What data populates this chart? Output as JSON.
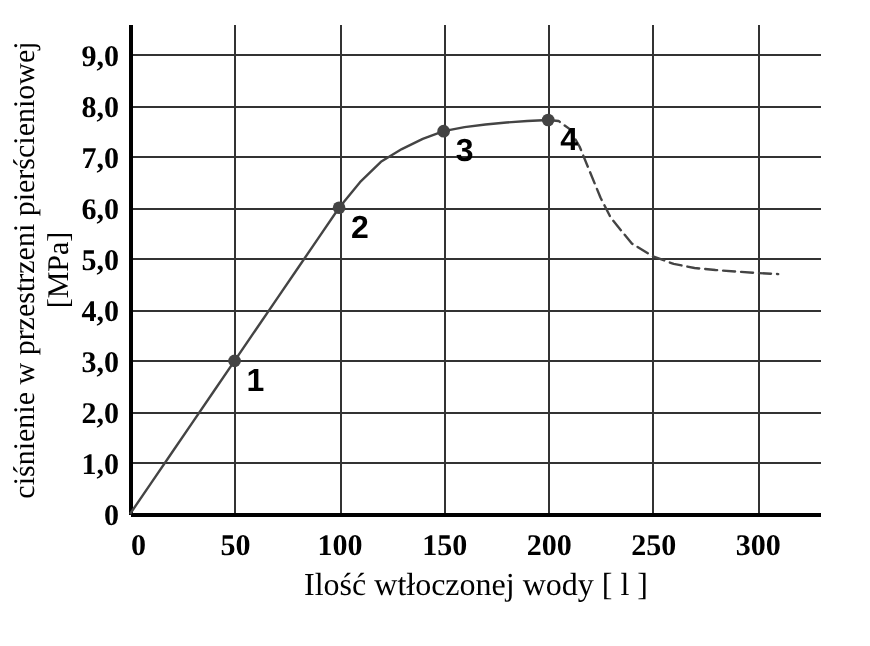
{
  "chart_data": {
    "type": "line",
    "xlabel": "Ilość wtłoczonej wody [ l ]",
    "ylabel": "ciśnienie w przestrzeni pierścieniowej\n[MPa]",
    "xlim": [
      0,
      330
    ],
    "ylim": [
      0,
      9.6
    ],
    "xticks": [
      0,
      50,
      100,
      150,
      200,
      250,
      300
    ],
    "yticks": [
      0,
      {
        "value": 1,
        "label": "1,0"
      },
      {
        "value": 2,
        "label": "2,0"
      },
      {
        "value": 3,
        "label": "3,0"
      },
      {
        "value": 4,
        "label": "4,0"
      },
      {
        "value": 5,
        "label": "5,0"
      },
      {
        "value": 6,
        "label": "6,0"
      },
      {
        "value": 7,
        "label": "7,0"
      },
      {
        "value": 8,
        "label": "8,0"
      },
      {
        "value": 9,
        "label": "9,0"
      }
    ],
    "grid": true,
    "series": [
      {
        "type": "line",
        "line_style": "solid",
        "color": "#444444",
        "x": [
          0,
          10,
          20,
          30,
          40,
          50,
          60,
          70,
          80,
          90,
          100,
          110,
          120,
          130,
          140,
          150,
          160,
          170,
          180,
          190,
          200
        ],
        "values": [
          0,
          0.6,
          1.2,
          1.8,
          2.4,
          3.0,
          3.6,
          4.2,
          4.8,
          5.4,
          6.0,
          6.5,
          6.9,
          7.15,
          7.35,
          7.5,
          7.58,
          7.63,
          7.67,
          7.7,
          7.72
        ]
      },
      {
        "type": "line",
        "line_style": "dashed",
        "color": "#444444",
        "x": [
          200,
          205,
          210,
          215,
          220,
          225,
          230,
          240,
          250,
          260,
          270,
          280,
          290,
          300,
          310
        ],
        "values": [
          7.72,
          7.7,
          7.55,
          7.2,
          6.7,
          6.2,
          5.8,
          5.3,
          5.05,
          4.9,
          4.82,
          4.78,
          4.75,
          4.72,
          4.7
        ]
      },
      {
        "type": "scatter",
        "marker": "circle",
        "color": "#444444",
        "x": [
          50,
          100,
          150,
          200
        ],
        "values": [
          3.0,
          6.0,
          7.5,
          7.72
        ]
      }
    ],
    "annotations": [
      {
        "text": "1",
        "x": 50,
        "y": 3.0
      },
      {
        "text": "2",
        "x": 100,
        "y": 6.0
      },
      {
        "text": "3",
        "x": 150,
        "y": 7.5
      },
      {
        "text": "4",
        "x": 200,
        "y": 7.72
      }
    ]
  }
}
